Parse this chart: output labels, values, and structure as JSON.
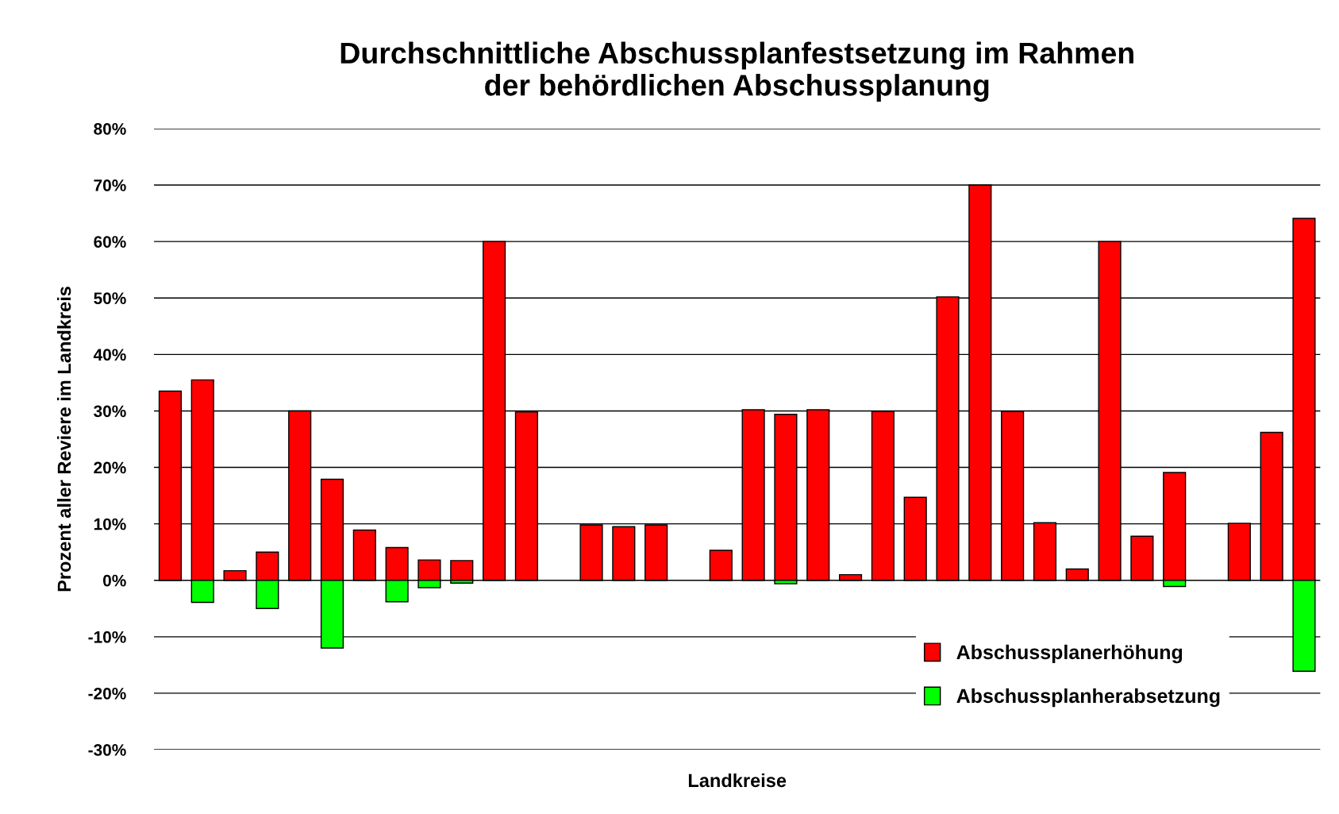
{
  "chart_data": {
    "type": "bar",
    "title": "Durchschnittliche Abschussplanfestsetzung im Rahmen\nder behördlichen Abschussplanung",
    "xlabel": "Landkreise",
    "ylabel": "Prozent aller Reviere im Landkreis",
    "categories": [
      null,
      null,
      null,
      null,
      null,
      null,
      null,
      null,
      null,
      null,
      null,
      null,
      null,
      null,
      null,
      null,
      null,
      null,
      null,
      null,
      null,
      null,
      null,
      null,
      null,
      null,
      null,
      null,
      null,
      null,
      null,
      null,
      null,
      null,
      null,
      null
    ],
    "series": [
      {
        "name": "Abschussplanerhöhung",
        "color": "#ff0000",
        "values": [
          33.5,
          35.5,
          1.7,
          5,
          30,
          17.9,
          8.9,
          5.8,
          3.6,
          3.5,
          60,
          29.8,
          null,
          9.8,
          9.5,
          9.8,
          null,
          5.3,
          30.2,
          29.4,
          30.2,
          1,
          29.9,
          14.7,
          50.2,
          70,
          29.9,
          10.2,
          2,
          60,
          7.8,
          19.1,
          null,
          10.1,
          26.2,
          64.1
        ]
      },
      {
        "name": "Abschussplanherabsetzung",
        "color": "#00ff00",
        "values": [
          null,
          -3.9,
          null,
          -5,
          null,
          -12,
          null,
          -3.8,
          -1.3,
          -0.5,
          null,
          null,
          null,
          null,
          null,
          null,
          null,
          null,
          null,
          -0.6,
          null,
          null,
          null,
          null,
          null,
          null,
          null,
          null,
          null,
          null,
          null,
          -1.1,
          null,
          null,
          null,
          -16.1
        ]
      }
    ],
    "ylim": [
      -30,
      80
    ],
    "yticks": [
      {
        "value": -30,
        "label": "-30%"
      },
      {
        "value": -20,
        "label": "-20%"
      },
      {
        "value": -10,
        "label": "-10%"
      },
      {
        "value": 0,
        "label": "0%"
      },
      {
        "value": 10,
        "label": "10%"
      },
      {
        "value": 20,
        "label": "20%"
      },
      {
        "value": 30,
        "label": "30%"
      },
      {
        "value": 40,
        "label": "40%"
      },
      {
        "value": 50,
        "label": "50%"
      },
      {
        "value": 60,
        "label": "60%"
      },
      {
        "value": 70,
        "label": "70%"
      },
      {
        "value": 80,
        "label": "80%"
      }
    ],
    "grid": "y",
    "legend": "bottom right"
  }
}
